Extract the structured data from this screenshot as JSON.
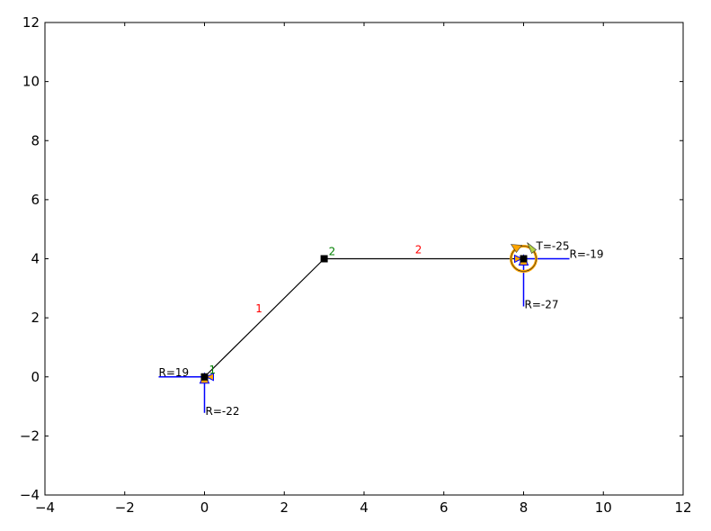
{
  "chart_data": {
    "type": "structural-frame-diagram",
    "xlim": [
      -4,
      12
    ],
    "ylim": [
      -4,
      12
    ],
    "xticks": [
      -4,
      -2,
      0,
      2,
      4,
      6,
      8,
      10,
      12
    ],
    "yticks": [
      -4,
      -2,
      0,
      2,
      4,
      6,
      8,
      10,
      12
    ],
    "x_tick_labels": [
      "−4",
      "−2",
      "0",
      "2",
      "4",
      "6",
      "8",
      "10",
      "12"
    ],
    "y_tick_labels": [
      "−4",
      "−2",
      "0",
      "2",
      "4",
      "6",
      "8",
      "10",
      "12"
    ],
    "nodes": [
      {
        "id": "0",
        "x": 0,
        "y": 0,
        "support": "pinned"
      },
      {
        "id": "2",
        "x": 3,
        "y": 4,
        "label": "2"
      },
      {
        "id": "3",
        "x": 8,
        "y": 4,
        "support": "fixed"
      }
    ],
    "node_label_extra": [
      {
        "label": "1",
        "x": 0,
        "y": 0
      }
    ],
    "members": [
      {
        "label": "1",
        "from": [
          0,
          0
        ],
        "to": [
          3,
          4
        ]
      },
      {
        "label": "2",
        "from": [
          3,
          4
        ],
        "to": [
          8,
          4
        ]
      }
    ],
    "reactions": [
      {
        "label": "R=19",
        "at": [
          0,
          0
        ],
        "direction": "horizontal"
      },
      {
        "label": "R=-22",
        "at": [
          0,
          0
        ],
        "direction": "vertical"
      },
      {
        "label": "R=-19",
        "at": [
          8,
          4
        ],
        "direction": "horizontal"
      },
      {
        "label": "R=-27",
        "at": [
          8,
          4
        ],
        "direction": "vertical"
      },
      {
        "label": "T=-25",
        "at": [
          8,
          4
        ],
        "direction": "moment"
      }
    ],
    "colors": {
      "member": "#000000",
      "member_label": "#ff0000",
      "node_label": "#008000",
      "reaction": "#0000ff",
      "support": "#ffa500"
    }
  }
}
